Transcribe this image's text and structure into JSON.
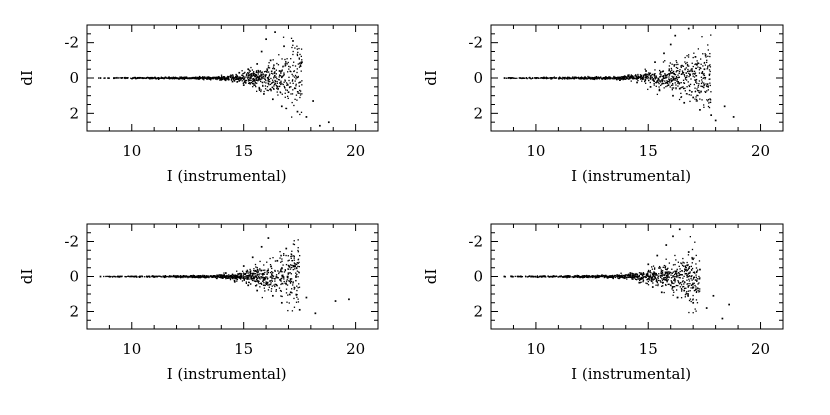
{
  "chart_data": [
    {
      "type": "scatter",
      "panel": "top-left",
      "xlabel": "I (instrumental)",
      "ylabel": "dI",
      "xlim": [
        8,
        21
      ],
      "ylim": [
        3,
        -3
      ],
      "y_inverted": true,
      "xticks": [
        10,
        15,
        20
      ],
      "yticks": [
        -2,
        0,
        2
      ],
      "xtick_labels": [
        "10",
        "15",
        "20"
      ],
      "ytick_labels": [
        "-2",
        "0",
        "2"
      ],
      "grid": false,
      "trend": {
        "x_start": 8.5,
        "knee": 13.4,
        "x_end": 17.6,
        "scatter_at_start": 0.015,
        "scatter_at_knee": 0.06,
        "scatter_at_end": 1.9
      },
      "points": [
        {
          "x": 8.6,
          "y": 0.0
        },
        {
          "x": 9.2,
          "y": 0.01
        },
        {
          "x": 9.8,
          "y": 0.0
        },
        {
          "x": 10.5,
          "y": 0.01
        },
        {
          "x": 11.2,
          "y": 0.02
        },
        {
          "x": 11.9,
          "y": 0.03
        },
        {
          "x": 12.5,
          "y": 0.02
        },
        {
          "x": 13.0,
          "y": 0.05
        },
        {
          "x": 13.5,
          "y": 0.06
        },
        {
          "x": 14.0,
          "y": 0.1
        },
        {
          "x": 14.5,
          "y": 0.2
        },
        {
          "x": 14.8,
          "y": -0.3
        },
        {
          "x": 15.0,
          "y": 0.4
        },
        {
          "x": 15.2,
          "y": -0.5
        },
        {
          "x": 15.4,
          "y": 0.3
        },
        {
          "x": 15.6,
          "y": -0.8
        },
        {
          "x": 15.7,
          "y": 0.6
        },
        {
          "x": 15.8,
          "y": -1.5
        },
        {
          "x": 15.9,
          "y": 0.9
        },
        {
          "x": 16.0,
          "y": -2.2
        },
        {
          "x": 16.1,
          "y": 0.3
        },
        {
          "x": 16.2,
          "y": -1.0
        },
        {
          "x": 16.3,
          "y": 1.2
        },
        {
          "x": 16.4,
          "y": -2.6
        },
        {
          "x": 16.5,
          "y": 0.5
        },
        {
          "x": 16.6,
          "y": -0.4
        },
        {
          "x": 16.7,
          "y": 1.6
        },
        {
          "x": 16.8,
          "y": -1.8
        },
        {
          "x": 17.0,
          "y": 0.8
        },
        {
          "x": 17.2,
          "y": -2.1
        },
        {
          "x": 17.4,
          "y": 1.9
        },
        {
          "x": 17.6,
          "y": -0.9
        },
        {
          "x": 17.8,
          "y": 2.2
        },
        {
          "x": 18.1,
          "y": 1.3
        },
        {
          "x": 18.4,
          "y": 2.7
        },
        {
          "x": 18.8,
          "y": 2.5
        }
      ]
    },
    {
      "type": "scatter",
      "panel": "top-right",
      "xlabel": "I (instrumental)",
      "ylabel": "dI",
      "xlim": [
        8,
        21
      ],
      "ylim": [
        3,
        -3
      ],
      "y_inverted": true,
      "xticks": [
        10,
        15,
        20
      ],
      "yticks": [
        -2,
        0,
        2
      ],
      "xtick_labels": [
        "10",
        "15",
        "20"
      ],
      "ytick_labels": [
        "-2",
        "0",
        "2"
      ],
      "grid": false,
      "trend": {
        "x_start": 8.5,
        "knee": 13.2,
        "x_end": 17.8,
        "scatter_at_start": 0.015,
        "scatter_at_knee": 0.07,
        "scatter_at_end": 2.0
      },
      "points": [
        {
          "x": 8.6,
          "y": 0.0
        },
        {
          "x": 9.3,
          "y": 0.0
        },
        {
          "x": 10.0,
          "y": 0.01
        },
        {
          "x": 10.7,
          "y": 0.02
        },
        {
          "x": 11.4,
          "y": 0.01
        },
        {
          "x": 12.0,
          "y": 0.03
        },
        {
          "x": 12.6,
          "y": 0.04
        },
        {
          "x": 13.1,
          "y": 0.05
        },
        {
          "x": 13.6,
          "y": 0.08
        },
        {
          "x": 14.1,
          "y": -0.15
        },
        {
          "x": 14.5,
          "y": 0.25
        },
        {
          "x": 14.9,
          "y": -0.4
        },
        {
          "x": 15.1,
          "y": 0.5
        },
        {
          "x": 15.3,
          "y": -0.9
        },
        {
          "x": 15.5,
          "y": 0.7
        },
        {
          "x": 15.7,
          "y": -1.4
        },
        {
          "x": 15.9,
          "y": 0.4
        },
        {
          "x": 16.0,
          "y": -1.9
        },
        {
          "x": 16.1,
          "y": 1.0
        },
        {
          "x": 16.2,
          "y": -2.4
        },
        {
          "x": 16.4,
          "y": 0.6
        },
        {
          "x": 16.5,
          "y": -0.7
        },
        {
          "x": 16.6,
          "y": 1.4
        },
        {
          "x": 16.8,
          "y": -2.8
        },
        {
          "x": 17.0,
          "y": 1.1
        },
        {
          "x": 17.1,
          "y": -1.2
        },
        {
          "x": 17.3,
          "y": 1.8
        },
        {
          "x": 17.5,
          "y": -0.5
        },
        {
          "x": 17.8,
          "y": 2.1
        },
        {
          "x": 18.0,
          "y": 2.4
        },
        {
          "x": 18.4,
          "y": 1.6
        },
        {
          "x": 18.8,
          "y": 2.2
        }
      ]
    },
    {
      "type": "scatter",
      "panel": "bottom-left",
      "xlabel": "I (instrumental)",
      "ylabel": "dI",
      "xlim": [
        8,
        21
      ],
      "ylim": [
        3,
        -3
      ],
      "y_inverted": true,
      "xticks": [
        10,
        15,
        20
      ],
      "yticks": [
        -2,
        0,
        2
      ],
      "xtick_labels": [
        "10",
        "15",
        "20"
      ],
      "ytick_labels": [
        "-2",
        "0",
        "2"
      ],
      "grid": false,
      "trend": {
        "x_start": 8.5,
        "knee": 13.3,
        "x_end": 17.5,
        "scatter_at_start": 0.015,
        "scatter_at_knee": 0.06,
        "scatter_at_end": 1.8
      },
      "points": [
        {
          "x": 8.6,
          "y": 0.0
        },
        {
          "x": 9.4,
          "y": 0.01
        },
        {
          "x": 10.1,
          "y": 0.0
        },
        {
          "x": 10.8,
          "y": 0.02
        },
        {
          "x": 11.5,
          "y": 0.02
        },
        {
          "x": 12.2,
          "y": 0.03
        },
        {
          "x": 12.8,
          "y": 0.04
        },
        {
          "x": 13.3,
          "y": 0.06
        },
        {
          "x": 13.8,
          "y": 0.1
        },
        {
          "x": 14.2,
          "y": -0.2
        },
        {
          "x": 14.6,
          "y": 0.3
        },
        {
          "x": 15.0,
          "y": -0.6
        },
        {
          "x": 15.2,
          "y": 0.5
        },
        {
          "x": 15.4,
          "y": -1.1
        },
        {
          "x": 15.6,
          "y": 0.8
        },
        {
          "x": 15.8,
          "y": -1.7
        },
        {
          "x": 16.0,
          "y": 0.4
        },
        {
          "x": 16.1,
          "y": -2.2
        },
        {
          "x": 16.3,
          "y": 1.1
        },
        {
          "x": 16.5,
          "y": -0.9
        },
        {
          "x": 16.7,
          "y": 1.5
        },
        {
          "x": 16.9,
          "y": -1.6
        },
        {
          "x": 17.1,
          "y": 0.9
        },
        {
          "x": 17.3,
          "y": -0.6
        },
        {
          "x": 17.5,
          "y": 1.9
        },
        {
          "x": 17.8,
          "y": 1.2
        },
        {
          "x": 18.2,
          "y": 2.1
        },
        {
          "x": 19.1,
          "y": 1.4
        },
        {
          "x": 19.7,
          "y": 1.3
        }
      ]
    },
    {
      "type": "scatter",
      "panel": "bottom-right",
      "xlabel": "I (instrumental)",
      "ylabel": "dI",
      "xlim": [
        8,
        21
      ],
      "ylim": [
        3,
        -3
      ],
      "y_inverted": true,
      "xticks": [
        10,
        15,
        20
      ],
      "yticks": [
        -2,
        0,
        2
      ],
      "xtick_labels": [
        "10",
        "15",
        "20"
      ],
      "ytick_labels": [
        "-2",
        "0",
        "2"
      ],
      "grid": false,
      "trend": {
        "x_start": 8.5,
        "knee": 13.0,
        "x_end": 17.3,
        "scatter_at_start": 0.015,
        "scatter_at_knee": 0.07,
        "scatter_at_end": 1.7
      },
      "points": [
        {
          "x": 8.6,
          "y": 0.0
        },
        {
          "x": 9.2,
          "y": 0.0
        },
        {
          "x": 9.9,
          "y": 0.01
        },
        {
          "x": 10.6,
          "y": 0.02
        },
        {
          "x": 11.3,
          "y": 0.02
        },
        {
          "x": 12.0,
          "y": 0.03
        },
        {
          "x": 12.7,
          "y": 0.05
        },
        {
          "x": 13.2,
          "y": 0.07
        },
        {
          "x": 13.7,
          "y": 0.1
        },
        {
          "x": 14.2,
          "y": -0.2
        },
        {
          "x": 14.6,
          "y": 0.35
        },
        {
          "x": 15.0,
          "y": -0.7
        },
        {
          "x": 15.2,
          "y": 0.6
        },
        {
          "x": 15.4,
          "y": -1.2
        },
        {
          "x": 15.6,
          "y": 0.9
        },
        {
          "x": 15.8,
          "y": -1.8
        },
        {
          "x": 16.0,
          "y": 0.5
        },
        {
          "x": 16.1,
          "y": -2.3
        },
        {
          "x": 16.3,
          "y": 1.2
        },
        {
          "x": 16.4,
          "y": -2.7
        },
        {
          "x": 16.6,
          "y": 0.8
        },
        {
          "x": 16.8,
          "y": -1.4
        },
        {
          "x": 17.0,
          "y": 1.5
        },
        {
          "x": 17.3,
          "y": -0.4
        },
        {
          "x": 17.6,
          "y": 1.8
        },
        {
          "x": 17.9,
          "y": 1.1
        },
        {
          "x": 18.3,
          "y": 2.4
        },
        {
          "x": 18.6,
          "y": 1.6
        }
      ]
    }
  ]
}
